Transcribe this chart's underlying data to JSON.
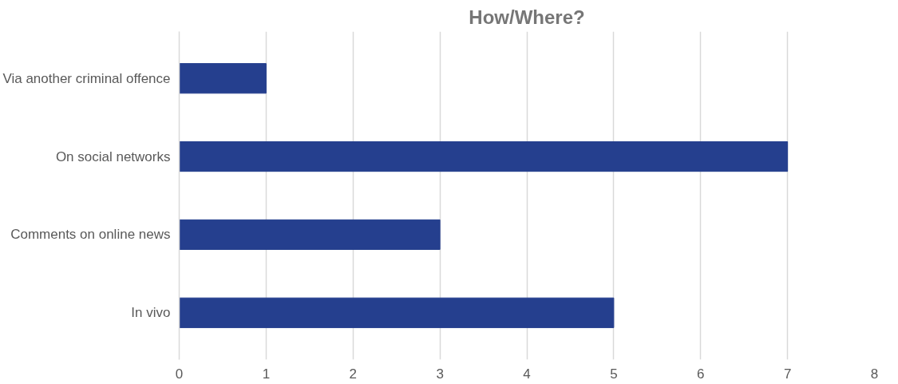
{
  "chart_data": {
    "type": "bar",
    "orientation": "horizontal",
    "title": "How/Where?",
    "categories": [
      "Via another criminal offence",
      "On social networks",
      "Comments on online news",
      "In vivo"
    ],
    "values": [
      1,
      7,
      3,
      5
    ],
    "color": "#253f8e",
    "xlim": [
      0,
      8
    ],
    "xticks": [
      0,
      1,
      2,
      3,
      4,
      5,
      6,
      7,
      8
    ],
    "grid": "x"
  }
}
